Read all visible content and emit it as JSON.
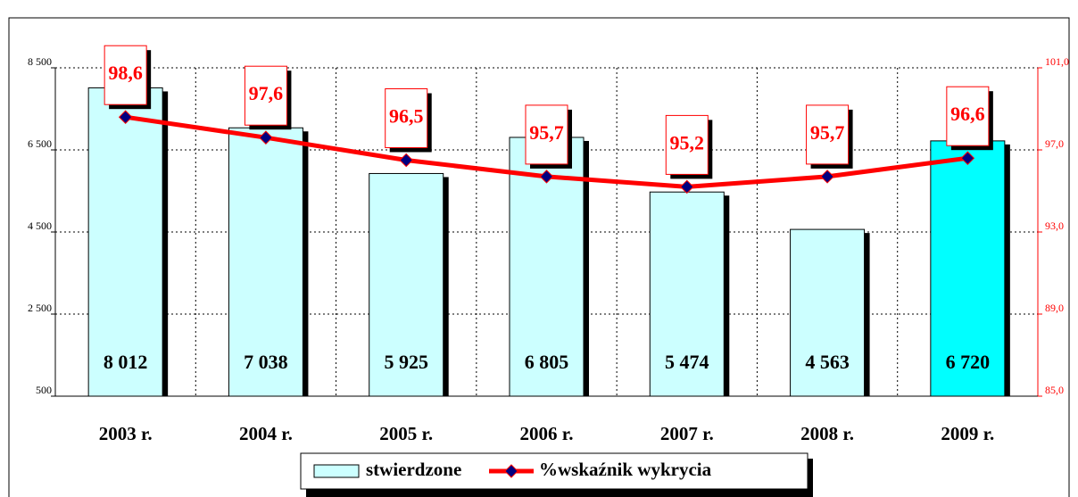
{
  "chart_data": {
    "type": "bar_line",
    "categories": [
      "2003 r.",
      "2004 r.",
      "2005 r.",
      "2006 r.",
      "2007 r.",
      "2008 r.",
      "2009 r."
    ],
    "series": [
      {
        "name": "stwierdzone",
        "type": "bar",
        "color": "#ccffff",
        "highlight_color": "#00ffff",
        "values": [
          8012,
          7038,
          5925,
          6805,
          5474,
          4563,
          6720
        ],
        "value_labels": [
          "8 012",
          "7 038",
          "5 925",
          "6 805",
          "5 474",
          "4 563",
          "6 720"
        ]
      },
      {
        "name": "%wskaźnik wykrycia",
        "type": "line",
        "axis": "y2",
        "color": "#ff0000",
        "marker_color": "#000080",
        "values": [
          98.6,
          97.6,
          96.5,
          95.7,
          95.2,
          95.7,
          96.6
        ],
        "value_labels": [
          "98,6",
          "97,6",
          "96,5",
          "95,7",
          "95,2",
          "95,7",
          "96,6"
        ]
      }
    ],
    "ylim": [
      500,
      8500
    ],
    "yticks": [
      {
        "value": 500,
        "label": "500"
      },
      {
        "value": 2500,
        "label": "2 500"
      },
      {
        "value": 4500,
        "label": "4 500"
      },
      {
        "value": 6500,
        "label": "6 500"
      },
      {
        "value": 8500,
        "label": "8 500"
      }
    ],
    "y2lim": [
      85,
      101
    ],
    "y2ticks": [
      {
        "value": 85,
        "label": "85,0"
      },
      {
        "value": 89,
        "label": "89,0"
      },
      {
        "value": 93,
        "label": "93,0"
      },
      {
        "value": 97,
        "label": "97,0"
      },
      {
        "value": 101,
        "label": "101,0"
      }
    ],
    "grid": true,
    "legend": "bottom"
  }
}
